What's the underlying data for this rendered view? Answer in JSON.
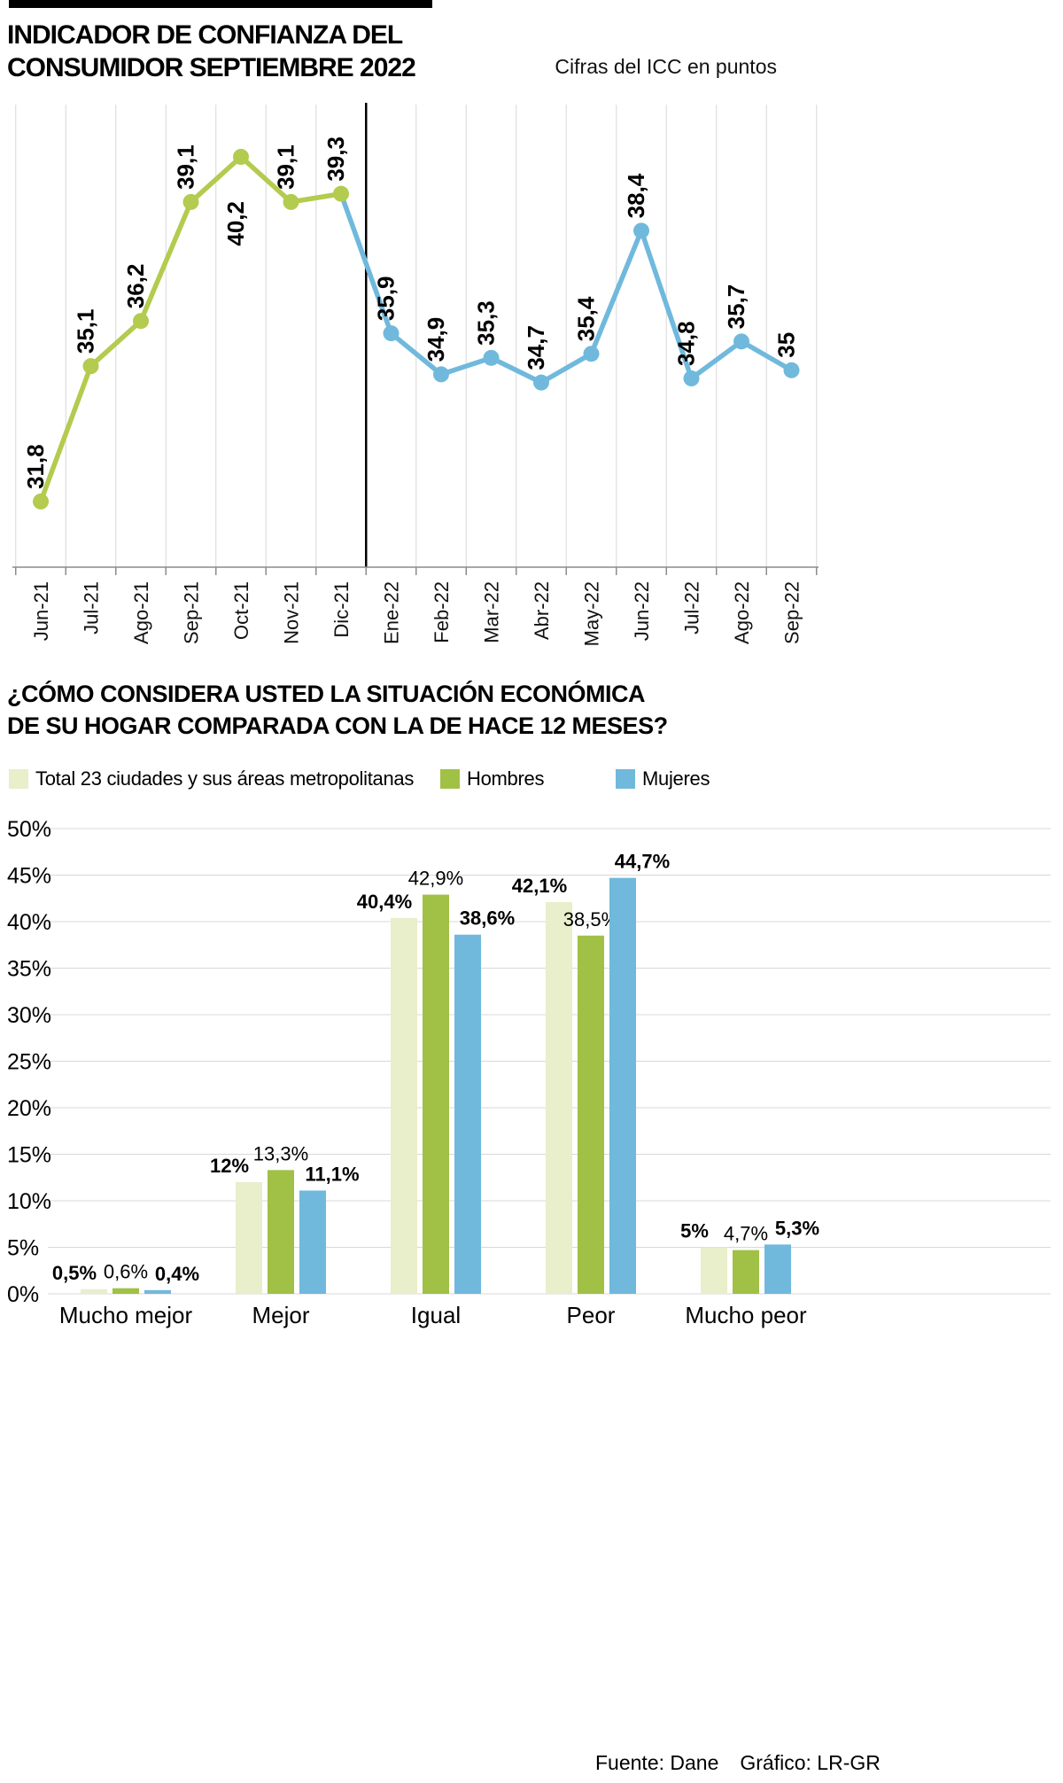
{
  "header": {
    "title_line1": "INDICADOR DE CONFIANZA DEL",
    "title_line2": "CONSUMIDOR SEPTIEMBRE 2022",
    "subtitle": "Cifras del ICC en puntos"
  },
  "section2": {
    "title_line1": "¿CÓMO CONSIDERA USTED LA SITUACIÓN ECONÓMICA",
    "title_line2": "DE SU HOGAR COMPARADA CON LA DE HACE 12 MESES?"
  },
  "legend": [
    {
      "label": "Total 23 ciudades y sus áreas metropolitanas",
      "color": "#e9eecb"
    },
    {
      "label": "Hombres",
      "color": "#a0c145"
    },
    {
      "label": "Mujeres",
      "color": "#70b9dc"
    }
  ],
  "footer": {
    "source": "Fuente: Dane",
    "credit": "Gráfico: LR-GR"
  },
  "chart_data": [
    {
      "type": "line",
      "title": "Indicador de Confianza del Consumidor Septiembre 2022",
      "unit": "Cifras del ICC en puntos",
      "categories": [
        "Jun-21",
        "Jul-21",
        "Ago-21",
        "Sep-21",
        "Oct-21",
        "Nov-21",
        "Dic-21",
        "Ene-22",
        "Feb-22",
        "Mar-22",
        "Abr-22",
        "May-22",
        "Jun-22",
        "Jul-22",
        "Ago-22",
        "Sep-22"
      ],
      "values": [
        31.8,
        35.1,
        36.2,
        39.1,
        40.2,
        39.1,
        39.3,
        35.9,
        34.9,
        35.3,
        34.7,
        35.4,
        38.4,
        34.8,
        35.7,
        35
      ],
      "labels": [
        "31,8",
        "35,1",
        "36,2",
        "39,1",
        "40,2",
        "39,1",
        "39,3",
        "35,9",
        "34,9",
        "35,3",
        "34,7",
        "35,4",
        "38,4",
        "34,8",
        "35,7",
        "35"
      ],
      "segment_colors": {
        "2021": "#b3cb4e",
        "2022": "#70b9dc"
      },
      "year_split_index": 7,
      "ylim": [
        30.2,
        41.5
      ],
      "grid": "vertical"
    },
    {
      "type": "bar",
      "categories": [
        "Mucho mejor",
        "Mejor",
        "Igual",
        "Peor",
        "Mucho peor"
      ],
      "series": [
        {
          "name": "Total 23 ciudades y sus áreas metropolitanas",
          "color": "#e9eecb",
          "values": [
            0.5,
            12,
            40.4,
            42.1,
            5
          ],
          "labels": [
            "0,5%",
            "12%",
            "40,4%",
            "42,1%",
            "5%"
          ]
        },
        {
          "name": "Hombres",
          "color": "#a0c145",
          "values": [
            0.6,
            13.3,
            42.9,
            38.5,
            4.7
          ],
          "labels": [
            "0,6%",
            "13,3%",
            "42,9%",
            "38,5%",
            "4,7%"
          ]
        },
        {
          "name": "Mujeres",
          "color": "#70b9dc",
          "values": [
            0.4,
            11.1,
            38.6,
            44.7,
            5.3
          ],
          "labels": [
            "0,4%",
            "11,1%",
            "38,6%",
            "44,7%",
            "5,3%"
          ]
        }
      ],
      "yticks": [
        "0%",
        "5%",
        "10%",
        "15%",
        "20%",
        "25%",
        "30%",
        "35%",
        "40%",
        "45%",
        "50%"
      ],
      "ylim": [
        0,
        50
      ],
      "grid": true,
      "legend_position": "top"
    }
  ]
}
